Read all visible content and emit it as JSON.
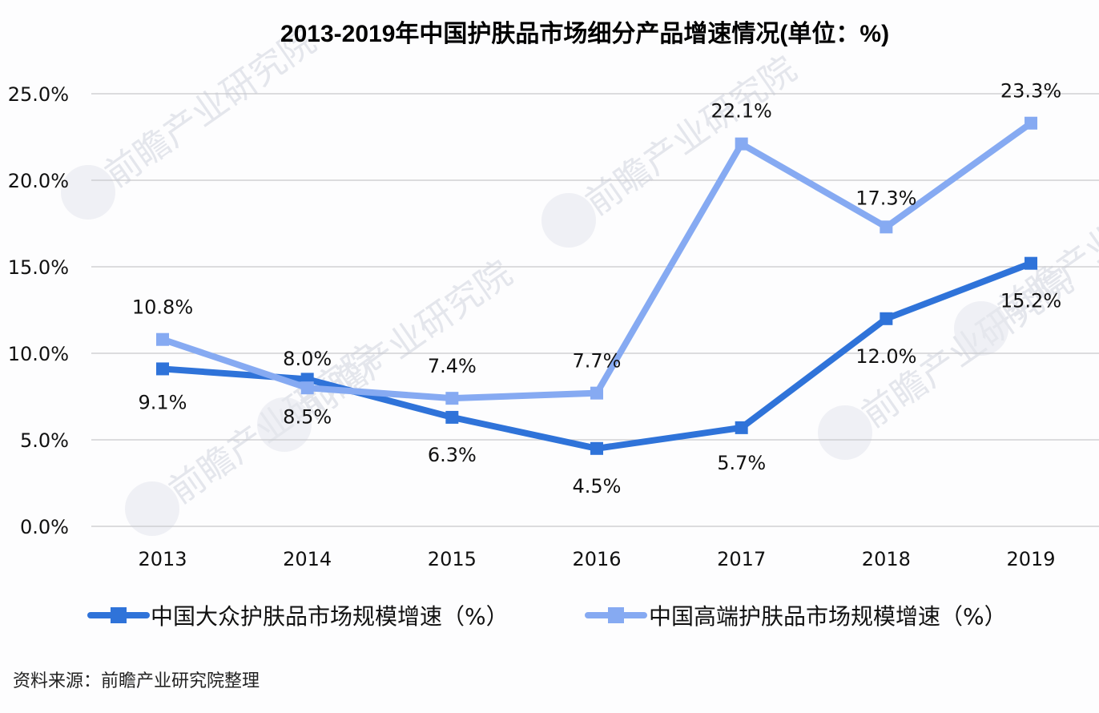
{
  "title": "2013-2019年中国护肤品市场细分产品增速情况(单位：%)",
  "source": "资料来源：前瞻产业研究院整理",
  "watermark": "前瞻产业研究院",
  "colors": {
    "mass_series": "#2f73d9",
    "premium_series": "#86aaf2",
    "gridline": "#c8c8cc",
    "background": "#fdfdfe"
  },
  "chart_data": {
    "type": "line",
    "title": "2013-2019年中国护肤品市场细分产品增速情况(单位：%)",
    "xlabel": "",
    "ylabel": "",
    "categories": [
      "2013",
      "2014",
      "2015",
      "2016",
      "2017",
      "2018",
      "2019"
    ],
    "ylim": [
      0,
      25
    ],
    "yticks": [
      "0.0%",
      "5.0%",
      "10.0%",
      "15.0%",
      "20.0%",
      "25.0%"
    ],
    "ytick_values": [
      0,
      5,
      10,
      15,
      20,
      25
    ],
    "grid": true,
    "legend_position": "bottom",
    "series": [
      {
        "name": "中国大众护肤品市场规模增速（%）",
        "color": "#2f73d9",
        "marker": "square",
        "values": [
          9.1,
          8.5,
          6.3,
          4.5,
          5.7,
          12.0,
          15.2
        ],
        "labels": [
          "9.1%",
          "8.5%",
          "6.3%",
          "4.5%",
          "5.7%",
          "12.0%",
          "15.2%"
        ],
        "label_position": "below"
      },
      {
        "name": "中国高端护肤品市场规模增速（%）",
        "color": "#86aaf2",
        "marker": "square",
        "values": [
          10.8,
          8.0,
          7.4,
          7.7,
          22.1,
          17.3,
          23.3
        ],
        "labels": [
          "10.8%",
          "8.0%",
          "7.4%",
          "7.7%",
          "22.1%",
          "17.3%",
          "23.3%"
        ],
        "label_position": "above"
      }
    ]
  }
}
